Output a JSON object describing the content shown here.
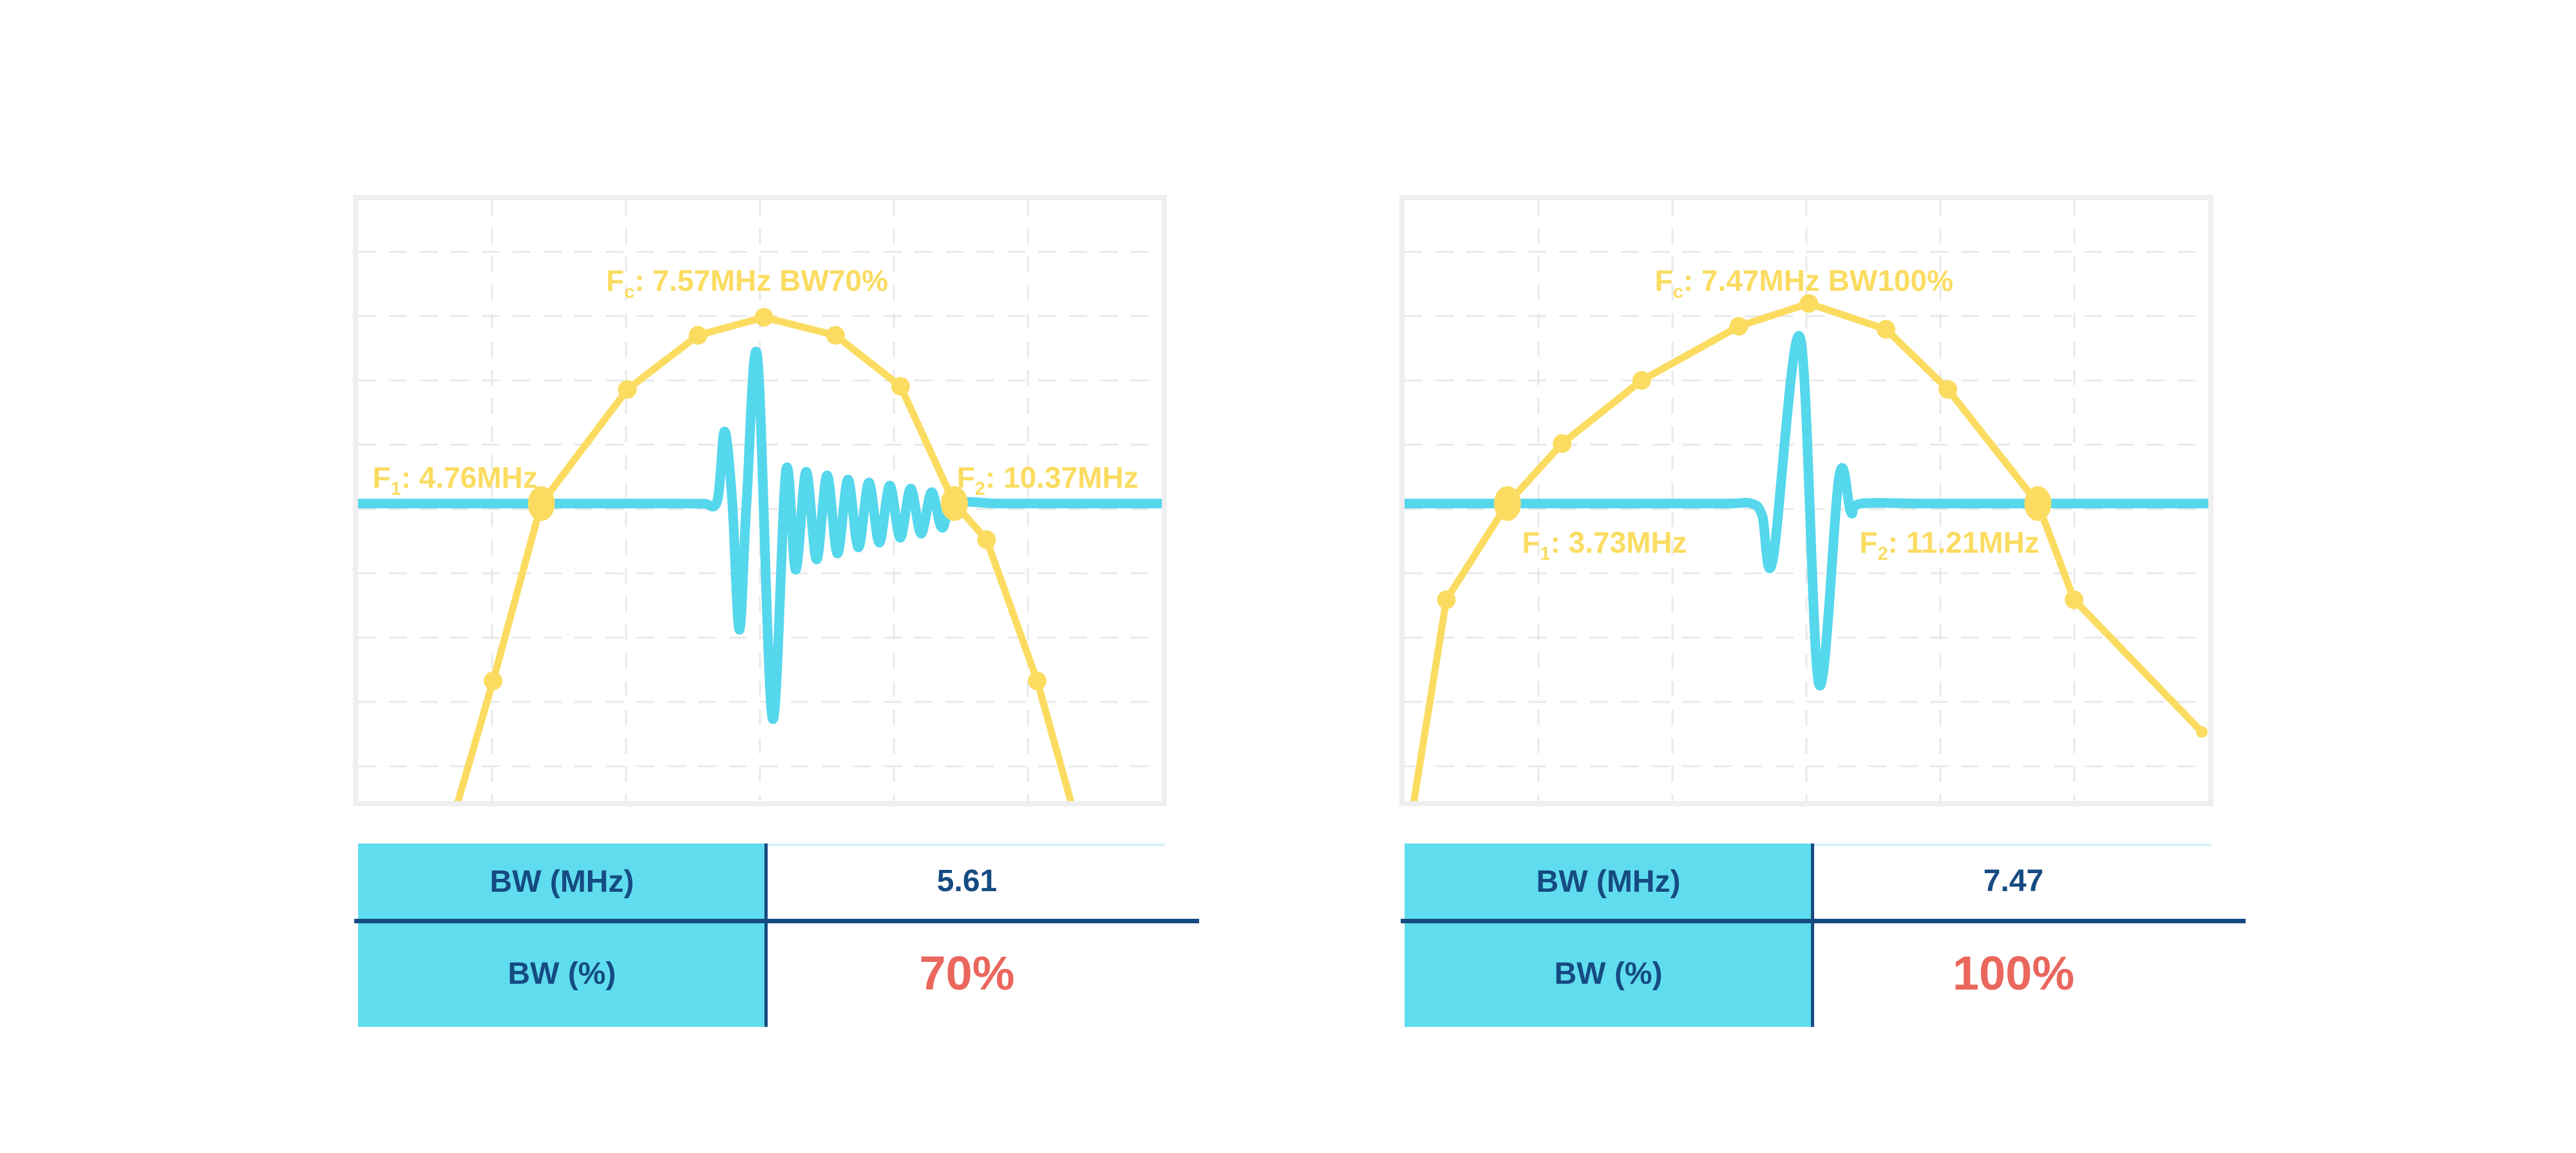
{
  "colors": {
    "background": "#FFFFFF",
    "yellow": "#FBDC61",
    "cyan": "#55D7EC",
    "navy": "#164B82",
    "red": "#EA675D",
    "grid": "#E9E9E9",
    "frame": "#EFEFEF",
    "table_fill": "#5FDDEE",
    "value_topline": "#D8F1F6"
  },
  "chart_data": [
    {
      "type": "line",
      "fc_mhz": 7.57,
      "f1_mhz": 4.76,
      "f2_mhz": 10.37,
      "bw_mhz": 5.61,
      "bw_pct": 70,
      "annotations": {
        "fc": {
          "base": "F",
          "sub": "c",
          "rest": ": 7.57MHz BW70%"
        },
        "f1": {
          "base": "F",
          "sub": "1",
          "rest": ": 4.76MHz"
        },
        "f2": {
          "base": "F",
          "sub": "2",
          "rest": ": 10.37MHz"
        }
      },
      "grid": {
        "v": [
          0.1667,
          0.3333,
          0.5,
          0.6667,
          0.8333
        ],
        "h": [
          0.086,
          0.193,
          0.3,
          0.407,
          0.514,
          0.621,
          0.728,
          0.835,
          0.942
        ]
      },
      "baseline_y": 0.505,
      "series": [
        {
          "name": "spectrum",
          "color": "#FBDC61",
          "points": [
            [
              0.118,
              1.03
            ],
            [
              0.168,
              0.8
            ],
            [
              0.228,
              0.505
            ],
            [
              0.335,
              0.315
            ],
            [
              0.423,
              0.225
            ],
            [
              0.505,
              0.195
            ],
            [
              0.594,
              0.225
            ],
            [
              0.675,
              0.31
            ],
            [
              0.742,
              0.505
            ],
            [
              0.782,
              0.565
            ],
            [
              0.845,
              0.8
            ],
            [
              0.893,
              1.03
            ]
          ],
          "markers": [
            [
              0.168,
              0.8,
              "normal"
            ],
            [
              0.228,
              0.505,
              "big"
            ],
            [
              0.335,
              0.315,
              "normal"
            ],
            [
              0.423,
              0.225,
              "normal"
            ],
            [
              0.505,
              0.195,
              "normal"
            ],
            [
              0.594,
              0.225,
              "normal"
            ],
            [
              0.675,
              0.31,
              "normal"
            ],
            [
              0.742,
              0.505,
              "big"
            ],
            [
              0.782,
              0.565,
              "normal"
            ],
            [
              0.845,
              0.8,
              "normal"
            ]
          ]
        },
        {
          "name": "pulse",
          "color": "#55D7EC",
          "points": [
            [
              -0.01,
              0.505
            ],
            [
              0.15,
              0.505
            ],
            [
              0.3,
              0.505
            ],
            [
              0.4,
              0.505
            ],
            [
              0.43,
              0.505
            ],
            [
              0.447,
              0.5
            ],
            [
              0.456,
              0.385
            ],
            [
              0.4655,
              0.5
            ],
            [
              0.4745,
              0.715
            ],
            [
              0.4835,
              0.5
            ],
            [
              0.497,
              0.262
            ],
            [
              0.5155,
              0.862
            ],
            [
              0.5325,
              0.45
            ],
            [
              0.5445,
              0.615
            ],
            [
              0.5575,
              0.452
            ],
            [
              0.5705,
              0.598
            ],
            [
              0.5835,
              0.458
            ],
            [
              0.5965,
              0.588
            ],
            [
              0.6095,
              0.465
            ],
            [
              0.6225,
              0.578
            ],
            [
              0.6355,
              0.47
            ],
            [
              0.6485,
              0.57
            ],
            [
              0.6615,
              0.475
            ],
            [
              0.6745,
              0.562
            ],
            [
              0.6875,
              0.48
            ],
            [
              0.7005,
              0.555
            ],
            [
              0.7135,
              0.486
            ],
            [
              0.7265,
              0.545
            ],
            [
              0.742,
              0.505
            ],
            [
              0.8,
              0.505
            ],
            [
              0.9,
              0.505
            ],
            [
              1.01,
              0.505
            ]
          ]
        }
      ]
    },
    {
      "type": "line",
      "fc_mhz": 7.47,
      "f1_mhz": 3.73,
      "f2_mhz": 11.21,
      "bw_mhz": 7.47,
      "bw_pct": 100,
      "annotations": {
        "fc": {
          "base": "F",
          "sub": "c",
          "rest": ": 7.47MHz BW100%"
        },
        "f1": {
          "base": "F",
          "sub": "1",
          "rest": ": 3.73MHz"
        },
        "f2": {
          "base": "F",
          "sub": "2",
          "rest": ": 11.21MHz"
        }
      },
      "grid": {
        "v": [
          0.1667,
          0.3333,
          0.5,
          0.6667,
          0.8333
        ],
        "h": [
          0.086,
          0.193,
          0.3,
          0.407,
          0.514,
          0.621,
          0.728,
          0.835,
          0.942
        ]
      },
      "baseline_y": 0.505,
      "series": [
        {
          "name": "spectrum",
          "color": "#FBDC61",
          "points": [
            [
              0.008,
              1.03
            ],
            [
              0.052,
              0.665
            ],
            [
              0.128,
              0.505
            ],
            [
              0.196,
              0.405
            ],
            [
              0.295,
              0.3
            ],
            [
              0.416,
              0.21
            ],
            [
              0.503,
              0.172
            ],
            [
              0.599,
              0.215
            ],
            [
              0.676,
              0.315
            ],
            [
              0.788,
              0.505
            ],
            [
              0.833,
              0.665
            ],
            [
              0.992,
              0.885
            ]
          ],
          "markers": [
            [
              0.052,
              0.665,
              "normal"
            ],
            [
              0.128,
              0.505,
              "big"
            ],
            [
              0.196,
              0.405,
              "normal"
            ],
            [
              0.295,
              0.3,
              "normal"
            ],
            [
              0.416,
              0.21,
              "normal"
            ],
            [
              0.503,
              0.172,
              "normal"
            ],
            [
              0.599,
              0.215,
              "normal"
            ],
            [
              0.676,
              0.315,
              "normal"
            ],
            [
              0.788,
              0.505,
              "big"
            ],
            [
              0.833,
              0.665,
              "normal"
            ],
            [
              0.992,
              0.885,
              "small"
            ]
          ]
        },
        {
          "name": "pulse",
          "color": "#55D7EC",
          "points": [
            [
              -0.01,
              0.505
            ],
            [
              0.15,
              0.505
            ],
            [
              0.3,
              0.505
            ],
            [
              0.4,
              0.505
            ],
            [
              0.432,
              0.505
            ],
            [
              0.445,
              0.525
            ],
            [
              0.458,
              0.6
            ],
            [
              0.492,
              0.228
            ],
            [
              0.5155,
              0.805
            ],
            [
              0.541,
              0.458
            ],
            [
              0.5555,
              0.52
            ],
            [
              0.568,
              0.505
            ],
            [
              0.65,
              0.505
            ],
            [
              0.8,
              0.505
            ],
            [
              0.92,
              0.505
            ],
            [
              1.01,
              0.505
            ]
          ]
        }
      ]
    }
  ],
  "tables": [
    {
      "rows": [
        {
          "label": "BW (MHz)",
          "value": "5.61"
        },
        {
          "label": "BW (%)",
          "value": "70%"
        }
      ]
    },
    {
      "rows": [
        {
          "label": "BW (MHz)",
          "value": "7.47"
        },
        {
          "label": "BW (%)",
          "value": "100%"
        }
      ]
    }
  ]
}
